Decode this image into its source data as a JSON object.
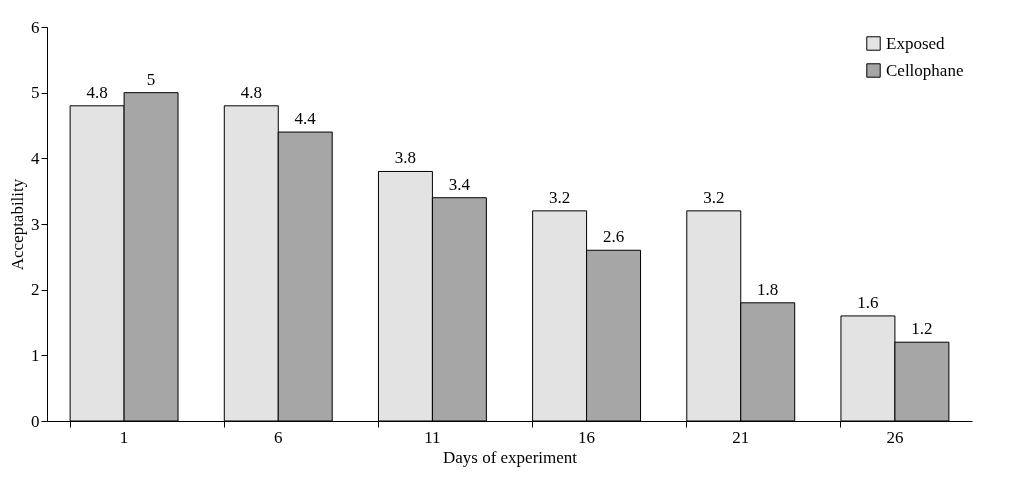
{
  "chart_data": {
    "type": "bar",
    "xlabel": "Days of experiment",
    "ylabel": "Acceptability",
    "categories": [
      "1",
      "6",
      "11",
      "16",
      "21",
      "26"
    ],
    "series": [
      {
        "name": "Exposed",
        "color": "#e3e3e3",
        "values": [
          4.8,
          4.8,
          3.8,
          3.2,
          3.2,
          1.6
        ]
      },
      {
        "name": "Cellophane",
        "color": "#a6a6a6",
        "values": [
          5,
          4.4,
          3.4,
          2.6,
          1.8,
          1.2
        ]
      }
    ],
    "ylim": [
      0,
      6
    ],
    "yticks": [
      0,
      1,
      2,
      3,
      4,
      5,
      6
    ],
    "grid": false,
    "legend": "top right",
    "data_labels": true
  }
}
